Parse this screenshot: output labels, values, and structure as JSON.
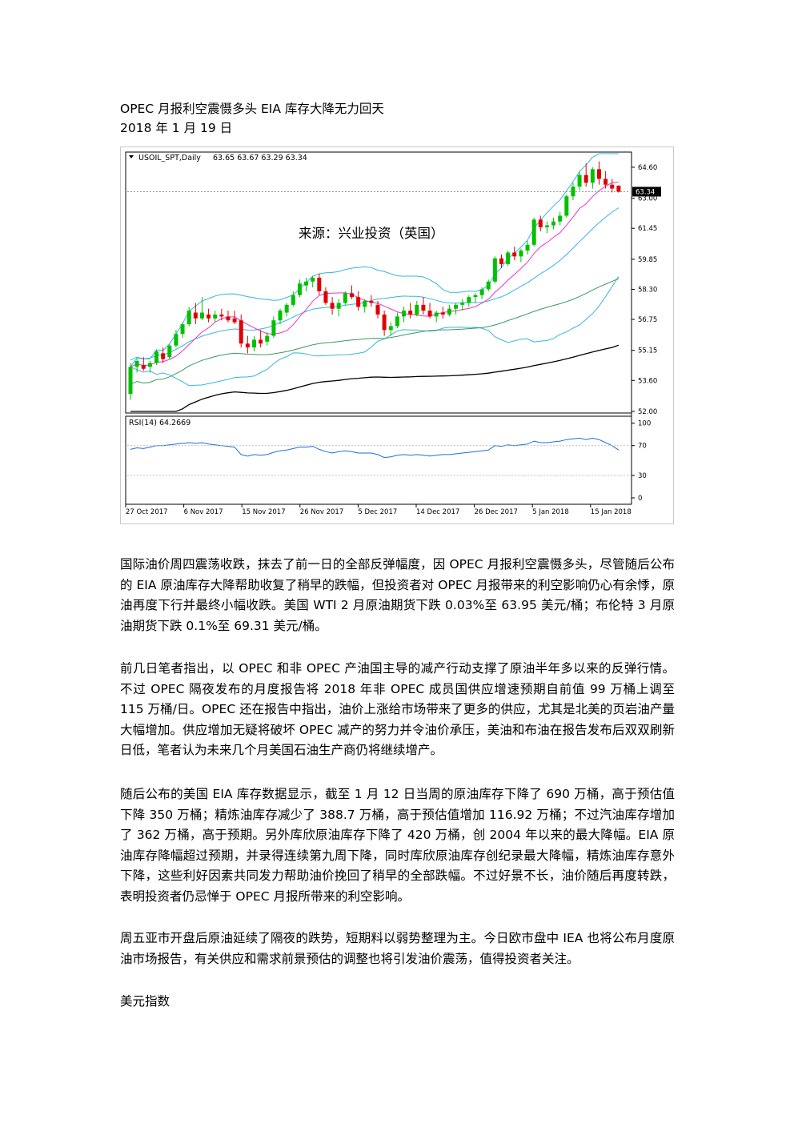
{
  "article": {
    "title": "OPEC 月报利空震慑多头  EIA 库存大降无力回天",
    "date": "2018 年 1 月 19 日",
    "paragraphs": [
      "国际油价周四震荡收跌，抹去了前一日的全部反弹幅度，因 OPEC 月报利空震慑多头，尽管随后公布的 EIA 原油库存大降帮助收复了稍早的跌幅，但投资者对 OPEC 月报带来的利空影响仍心有余悸，原油再度下行并最终小幅收跌。美国 WTI 2 月原油期货下跌 0.03%至 63.95 美元/桶；布伦特 3 月原油期货下跌 0.1%至 69.31 美元/桶。",
      "前几日笔者指出，以 OPEC 和非 OPEC 产油国主导的减产行动支撑了原油半年多以来的反弹行情。不过 OPEC 隔夜发布的月度报告将 2018 年非 OPEC 成员国供应增速预期自前值 99 万桶上调至 115 万桶/日。OPEC 还在报告中指出，油价上涨给市场带来了更多的供应，尤其是北美的页岩油产量大幅增加。供应增加无疑将破坏 OPEC 减产的努力并令油价承压，美油和布油在报告发布后双双刷新日低，笔者认为未来几个月美国石油生产商仍将继续增产。",
      "随后公布的美国 EIA 库存数据显示，截至 1 月 12 日当周的原油库存下降了 690 万桶，高于预估值下降 350 万桶；精炼油库存减少了 388.7 万桶，高于预估值增加 116.92 万桶；不过汽油库存增加了 362 万桶，高于预期。另外库欣原油库存下降了 420 万桶，创 2004 年以来的最大降幅。EIA 原油库存降幅超过预期，并录得连续第九周下降，同时库欣原油库存创纪录最大降幅，精炼油库存意外下降，这些利好因素共同发力帮助油价挽回了稍早的全部跌幅。不过好景不长，油价随后再度转跌，表明投资者仍忌惮于 OPEC 月报所带来的利空影响。",
      "周五亚市开盘后原油延续了隔夜的跌势，短期料以弱势整理为主。今日欧市盘中 IEA 也将公布月度原油市场报告，有关供应和需求前景预估的调整也将引发油价震荡，值得投资者关注。"
    ],
    "next_section": "美元指数"
  },
  "chart_data": {
    "type": "candlestick",
    "symbol_label": "USOIL_SPT,Daily",
    "ohlc_label": "63.65 63.67 63.29 63.34",
    "watermark": "来源：兴业投资（英国）",
    "y_ticks": [
      "64.60",
      "63.00",
      "61.45",
      "59.85",
      "58.30",
      "56.75",
      "55.15",
      "53.60",
      "52.00"
    ],
    "ylim": [
      52.0,
      65.3
    ],
    "current_price": "63.34",
    "x_ticks": [
      "27 Oct 2017",
      "6 Nov 2017",
      "15 Nov 2017",
      "26 Nov 2017",
      "5 Dec 2017",
      "14 Dec 2017",
      "26 Dec 2017",
      "5 Jan 2018",
      "15 Jan 2018"
    ],
    "candles": [
      [
        52.9,
        54.5,
        52.6,
        54.3
      ],
      [
        54.3,
        54.7,
        54.0,
        54.6
      ],
      [
        54.4,
        54.8,
        54.1,
        54.2
      ],
      [
        54.3,
        54.6,
        54.0,
        54.5
      ],
      [
        54.5,
        55.2,
        54.4,
        55.1
      ],
      [
        55.0,
        55.3,
        54.5,
        54.7
      ],
      [
        54.8,
        55.5,
        54.7,
        55.4
      ],
      [
        55.4,
        56.2,
        55.3,
        56.0
      ],
      [
        56.0,
        56.6,
        55.8,
        56.5
      ],
      [
        56.5,
        57.4,
        56.4,
        57.2
      ],
      [
        57.1,
        57.6,
        56.5,
        56.8
      ],
      [
        56.8,
        57.9,
        56.7,
        57.1
      ],
      [
        57.0,
        57.3,
        56.6,
        56.8
      ],
      [
        56.8,
        57.2,
        56.6,
        57.0
      ],
      [
        57.0,
        57.3,
        56.7,
        56.9
      ],
      [
        56.9,
        57.2,
        56.6,
        56.7
      ],
      [
        56.8,
        57.2,
        56.5,
        56.6
      ],
      [
        56.7,
        57.0,
        55.3,
        55.5
      ],
      [
        55.5,
        55.9,
        55.0,
        55.3
      ],
      [
        55.3,
        55.9,
        55.1,
        55.7
      ],
      [
        55.7,
        56.2,
        55.3,
        55.5
      ],
      [
        55.6,
        56.1,
        55.4,
        55.9
      ],
      [
        55.9,
        56.9,
        55.8,
        56.7
      ],
      [
        56.7,
        57.3,
        56.5,
        57.2
      ],
      [
        57.1,
        57.6,
        56.9,
        57.5
      ],
      [
        57.5,
        58.2,
        57.4,
        58.0
      ],
      [
        58.0,
        58.8,
        57.9,
        58.6
      ],
      [
        58.5,
        58.9,
        58.2,
        58.7
      ],
      [
        58.7,
        59.0,
        58.4,
        58.9
      ],
      [
        58.9,
        59.1,
        58.0,
        58.2
      ],
      [
        58.2,
        58.4,
        57.5,
        57.6
      ],
      [
        57.6,
        57.9,
        57.0,
        57.3
      ],
      [
        57.3,
        57.8,
        56.9,
        57.6
      ],
      [
        57.6,
        58.2,
        57.5,
        58.1
      ],
      [
        58.1,
        58.5,
        57.8,
        57.9
      ],
      [
        57.9,
        58.2,
        57.2,
        57.4
      ],
      [
        57.4,
        57.8,
        57.1,
        57.7
      ],
      [
        57.7,
        58.0,
        57.4,
        57.6
      ],
      [
        57.5,
        57.7,
        56.8,
        57.0
      ],
      [
        57.0,
        57.2,
        55.9,
        56.2
      ],
      [
        56.2,
        56.6,
        55.9,
        56.4
      ],
      [
        56.4,
        57.1,
        56.3,
        56.9
      ],
      [
        56.9,
        57.4,
        56.6,
        57.2
      ],
      [
        57.2,
        57.6,
        56.8,
        57.0
      ],
      [
        57.0,
        57.7,
        56.9,
        57.5
      ],
      [
        57.5,
        57.9,
        57.0,
        57.2
      ],
      [
        57.2,
        57.6,
        56.8,
        56.9
      ],
      [
        56.9,
        57.2,
        56.6,
        57.1
      ],
      [
        57.1,
        57.4,
        56.8,
        57.0
      ],
      [
        57.0,
        57.5,
        56.9,
        57.3
      ],
      [
        57.3,
        57.6,
        57.0,
        57.5
      ],
      [
        57.5,
        57.8,
        57.2,
        57.6
      ],
      [
        57.6,
        58.0,
        57.4,
        57.9
      ],
      [
        57.9,
        58.1,
        57.6,
        58.0
      ],
      [
        58.0,
        58.4,
        57.8,
        58.3
      ],
      [
        58.3,
        58.8,
        58.2,
        58.7
      ],
      [
        58.7,
        60.0,
        58.6,
        59.9
      ],
      [
        59.9,
        60.1,
        59.4,
        59.6
      ],
      [
        59.6,
        60.3,
        59.5,
        60.2
      ],
      [
        60.2,
        60.5,
        59.8,
        60.0
      ],
      [
        60.0,
        60.4,
        59.7,
        60.3
      ],
      [
        60.3,
        60.8,
        60.1,
        60.6
      ],
      [
        60.6,
        62.0,
        60.5,
        61.9
      ],
      [
        61.9,
        62.1,
        61.3,
        61.5
      ],
      [
        61.5,
        61.8,
        61.2,
        61.6
      ],
      [
        61.6,
        62.0,
        61.4,
        61.8
      ],
      [
        61.8,
        62.3,
        61.6,
        62.1
      ],
      [
        62.1,
        63.2,
        62.0,
        63.1
      ],
      [
        63.1,
        63.8,
        62.9,
        63.6
      ],
      [
        63.6,
        64.4,
        63.4,
        64.2
      ],
      [
        64.2,
        64.8,
        63.6,
        63.8
      ],
      [
        63.8,
        64.6,
        63.5,
        64.5
      ],
      [
        64.5,
        64.9,
        63.7,
        64.0
      ],
      [
        64.0,
        64.4,
        63.5,
        63.7
      ],
      [
        63.7,
        64.0,
        63.3,
        63.5
      ],
      [
        63.65,
        63.67,
        63.29,
        63.34
      ]
    ],
    "rsi": {
      "label": "RSI(14) 64.2669",
      "value": 64.2669,
      "y_ticks": [
        "100",
        "70",
        "30",
        "0"
      ],
      "values": [
        65,
        67,
        66,
        68,
        70,
        70,
        71,
        72,
        73,
        74,
        73,
        74,
        72,
        71,
        70,
        69,
        68,
        58,
        56,
        58,
        57,
        58,
        61,
        63,
        64,
        66,
        68,
        68,
        69,
        65,
        62,
        60,
        62,
        63,
        62,
        60,
        60,
        60,
        58,
        54,
        55,
        57,
        58,
        57,
        58,
        57,
        56,
        57,
        58,
        58,
        59,
        60,
        61,
        62,
        63,
        64,
        70,
        69,
        71,
        70,
        71,
        72,
        76,
        74,
        74,
        75,
        76,
        78,
        79,
        80,
        78,
        80,
        78,
        74,
        70,
        64
      ]
    },
    "colors": {
      "up": "#00c000",
      "down": "#e00000",
      "bollinger": "#33b5e5",
      "ma_fast": "#ee33cc",
      "ma_slow": "#3a9a5a",
      "ma_long": "#000000",
      "rsi": "#1d6fd1"
    }
  }
}
